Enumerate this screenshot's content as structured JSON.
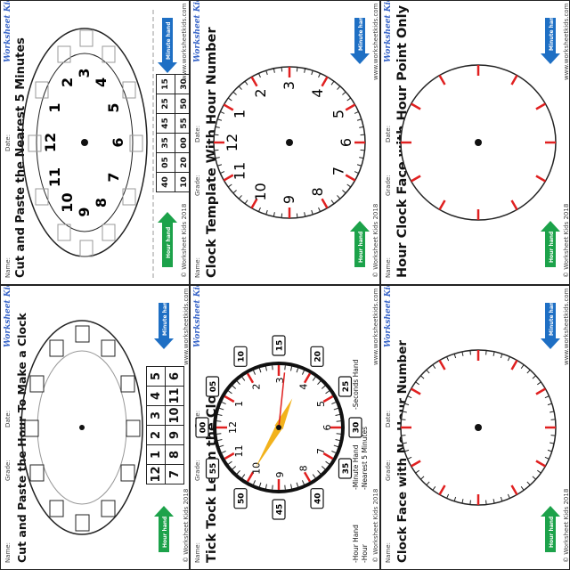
{
  "common": {
    "name_label": "Name:",
    "grade_label": "Grade:",
    "date_label": "Date:",
    "copyright": "© Worksheet Kids 2018",
    "website": "www.worksheetkids.com",
    "logo": "Worksheet Kids",
    "hour_hand": "Hour hand",
    "minute_hand": "Minute hand",
    "colors": {
      "hour_arrow": "#1ca24a",
      "minute_arrow": "#1e6fc4",
      "marks": "#e02020",
      "hand": "#f2b21c",
      "second_hand": "#e02020"
    }
  },
  "panels": [
    {
      "title": "Cut and Paste the Nearest 5 Minutes",
      "clock_numbers": [
        "12",
        "1",
        "2",
        "3",
        "4",
        "5",
        "6",
        "7",
        "8",
        "9",
        "10",
        "11"
      ],
      "minutes": [
        "40",
        "05",
        "35",
        "45",
        "25",
        "15",
        "10",
        "20",
        "00",
        "55",
        "50",
        "30"
      ]
    },
    {
      "title": "Clock Template With Hour Number",
      "clock_numbers": [
        "12",
        "1",
        "2",
        "3",
        "4",
        "5",
        "6",
        "7",
        "8",
        "9",
        "10",
        "11"
      ]
    },
    {
      "title": "Hour Clock Face with Hour Point Only"
    },
    {
      "title": "Cut and Paste the Hour To Make a Clock",
      "hours": [
        "6",
        "5",
        "4",
        "3",
        "2",
        "1",
        "12",
        "11",
        "10",
        "9",
        "8",
        "7"
      ]
    },
    {
      "title": "Tick Tock Learn the Clock",
      "clock_numbers": [
        "12",
        "1",
        "2",
        "3",
        "4",
        "5",
        "6",
        "7",
        "8",
        "9",
        "10",
        "11"
      ],
      "minute_labels": [
        "00",
        "05",
        "10",
        "15",
        "20",
        "25",
        "30",
        "35",
        "40",
        "45",
        "50",
        "55"
      ],
      "legend": [
        "-Hour Hand",
        "-Minute Hand",
        "-Seconds Hand",
        "-Hour",
        "-Nearest 5 Minutes"
      ],
      "time": {
        "hour": 3,
        "minute": 50,
        "second": 16
      }
    },
    {
      "title": "Clock Face with No Hour Number"
    }
  ]
}
